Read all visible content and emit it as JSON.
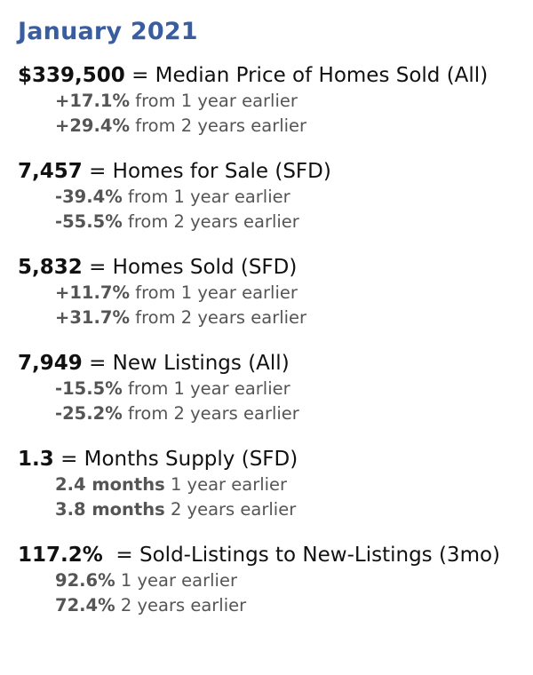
{
  "title": "January 2021",
  "stats": [
    {
      "value": "$339,500",
      "label": "= Median Price of Homes Sold (All)",
      "lines": [
        {
          "value": "+17.1%",
          "text": "from 1 year earlier"
        },
        {
          "value": "+29.4%",
          "text": "from 2 years earlier"
        }
      ]
    },
    {
      "value": "7,457",
      "label": "= Homes for Sale (SFD)",
      "lines": [
        {
          "value": "-39.4%",
          "text": "from 1 year earlier"
        },
        {
          "value": "-55.5%",
          "text": "from 2 years earlier"
        }
      ]
    },
    {
      "value": "5,832",
      "label": "= Homes Sold (SFD)",
      "lines": [
        {
          "value": "+11.7%",
          "text": "from 1 year earlier"
        },
        {
          "value": "+31.7%",
          "text": "from 2 years earlier"
        }
      ]
    },
    {
      "value": "7,949",
      "label": "= New Listings (All)",
      "lines": [
        {
          "value": "-15.5%",
          "text": "from 1 year earlier"
        },
        {
          "value": "-25.2%",
          "text": "from 2 years earlier"
        }
      ]
    },
    {
      "value": "1.3",
      "label": "= Months Supply (SFD)",
      "lines": [
        {
          "value": "2.4 months",
          "text": "1 year earlier"
        },
        {
          "value": "3.8 months",
          "text": "2 years earlier"
        }
      ]
    },
    {
      "value": "117.2%",
      "label": " = Sold-Listings to New-Listings (3mo)",
      "lines": [
        {
          "value": "92.6%",
          "text": "1 year earlier"
        },
        {
          "value": "72.4%",
          "text": "2 years earlier"
        }
      ]
    }
  ]
}
